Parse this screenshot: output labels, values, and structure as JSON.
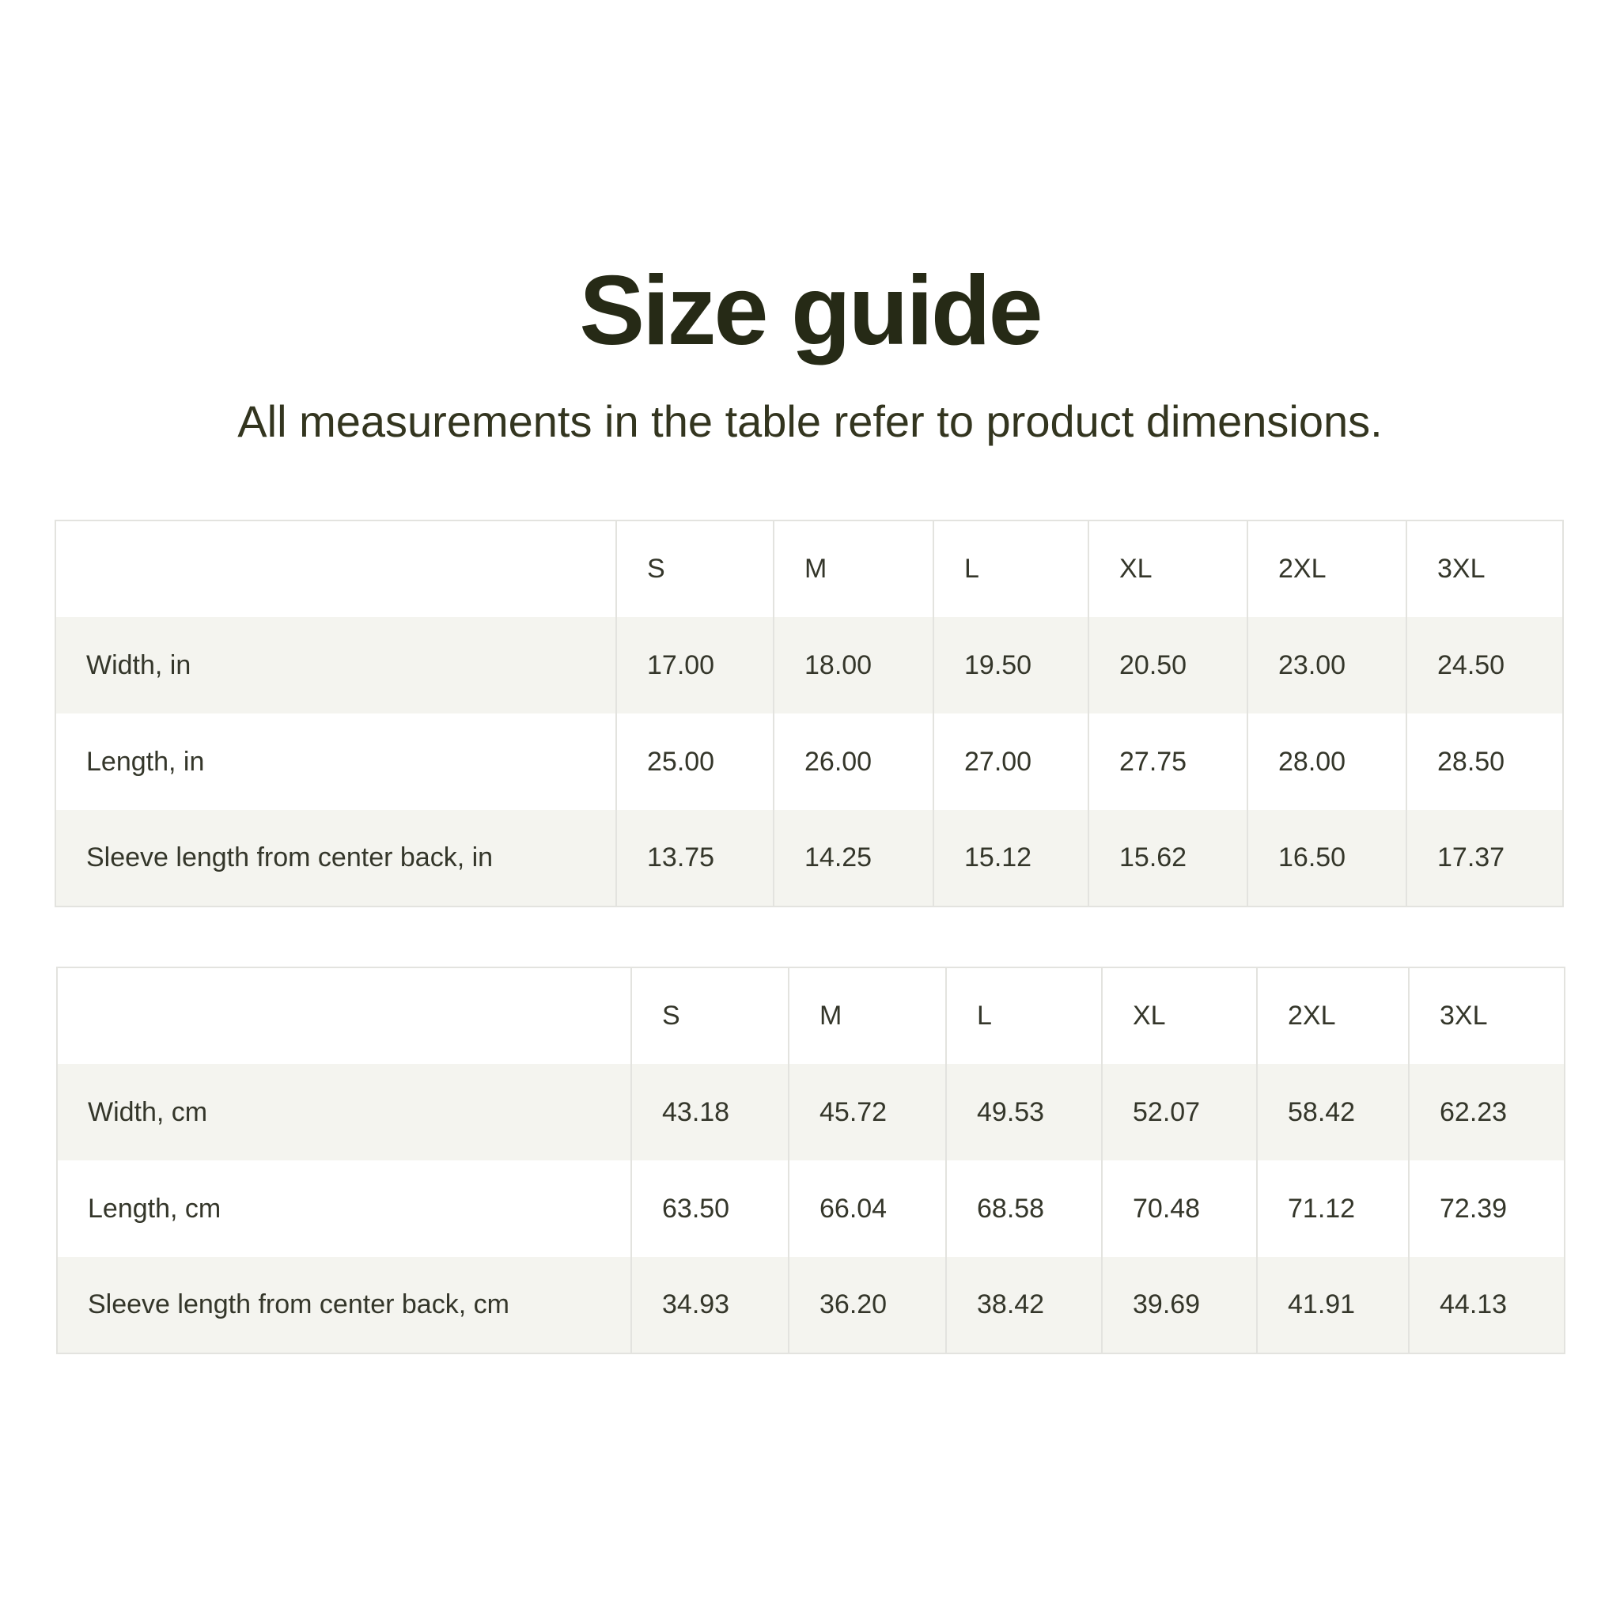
{
  "title": "Size guide",
  "subtitle": "All measurements in the table refer to product dimensions.",
  "colors": {
    "text": "#2e3023",
    "stripe": "#f4f4ef",
    "border": "#e3e3df"
  },
  "tables": [
    {
      "headers": [
        "",
        "S",
        "M",
        "L",
        "XL",
        "2XL",
        "3XL"
      ],
      "rows": [
        {
          "label": "Width, in",
          "values": [
            "17.00",
            "18.00",
            "19.50",
            "20.50",
            "23.00",
            "24.50"
          ]
        },
        {
          "label": "Length, in",
          "values": [
            "25.00",
            "26.00",
            "27.00",
            "27.75",
            "28.00",
            "28.50"
          ]
        },
        {
          "label": "Sleeve length from center back, in",
          "values": [
            "13.75",
            "14.25",
            "15.12",
            "15.62",
            "16.50",
            "17.37"
          ]
        }
      ]
    },
    {
      "headers": [
        "",
        "S",
        "M",
        "L",
        "XL",
        "2XL",
        "3XL"
      ],
      "rows": [
        {
          "label": "Width, cm",
          "values": [
            "43.18",
            "45.72",
            "49.53",
            "52.07",
            "58.42",
            "62.23"
          ]
        },
        {
          "label": "Length, cm",
          "values": [
            "63.50",
            "66.04",
            "68.58",
            "70.48",
            "71.12",
            "72.39"
          ]
        },
        {
          "label": "Sleeve length from center back, cm",
          "values": [
            "34.93",
            "36.20",
            "38.42",
            "39.69",
            "41.91",
            "44.13"
          ]
        }
      ]
    }
  ]
}
